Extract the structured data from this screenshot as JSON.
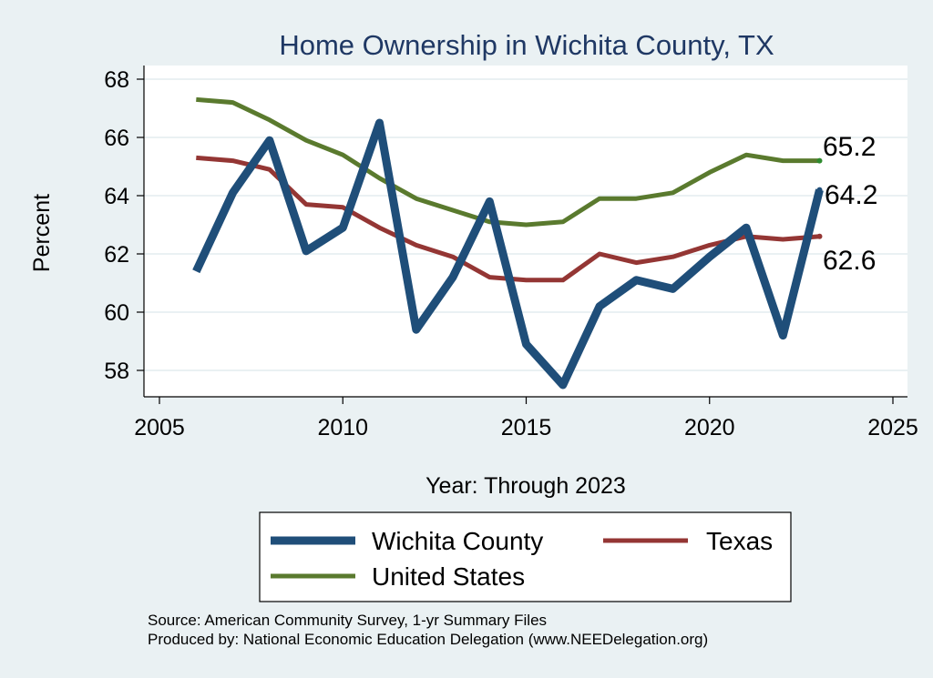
{
  "chart_data": {
    "type": "line",
    "title": "Home Ownership in Wichita County, TX",
    "xlabel": "Year: Through 2023",
    "ylabel": "Percent",
    "xlim": [
      2005,
      2025
    ],
    "ylim": [
      57,
      69
    ],
    "xticks": [
      2005,
      2010,
      2015,
      2020,
      2025
    ],
    "yticks": [
      58,
      60,
      62,
      64,
      66,
      68
    ],
    "grid": "horizontal",
    "legend_position": "bottom",
    "x": [
      2006,
      2007,
      2008,
      2009,
      2010,
      2011,
      2012,
      2013,
      2014,
      2015,
      2016,
      2017,
      2018,
      2019,
      2020,
      2021,
      2022,
      2023
    ],
    "series": [
      {
        "name": "Wichita County",
        "color": "#1f4e79",
        "values": [
          61.4,
          64.1,
          65.9,
          62.1,
          62.9,
          66.5,
          59.4,
          61.2,
          63.8,
          58.9,
          57.5,
          60.2,
          61.1,
          60.8,
          61.9,
          62.9,
          59.2,
          64.2
        ],
        "end_label": "64.2"
      },
      {
        "name": "Texas",
        "color": "#943634",
        "values": [
          65.3,
          65.2,
          64.9,
          63.7,
          63.6,
          62.9,
          62.3,
          61.9,
          61.2,
          61.1,
          61.1,
          62.0,
          61.7,
          61.9,
          62.3,
          62.6,
          62.5,
          62.6
        ],
        "end_label": "62.6"
      },
      {
        "name": "United States",
        "color": "#5a7a2e",
        "values": [
          67.3,
          67.2,
          66.6,
          65.9,
          65.4,
          64.6,
          63.9,
          63.5,
          63.1,
          63.0,
          63.1,
          63.9,
          63.9,
          64.1,
          64.8,
          65.4,
          65.2,
          65.2
        ],
        "end_label": "65.2"
      }
    ],
    "notes": [
      "Source: American Community Survey, 1-yr Summary Files",
      "Produced by: National Economic Education Delegation (www.NEEDelegation.org)"
    ]
  }
}
